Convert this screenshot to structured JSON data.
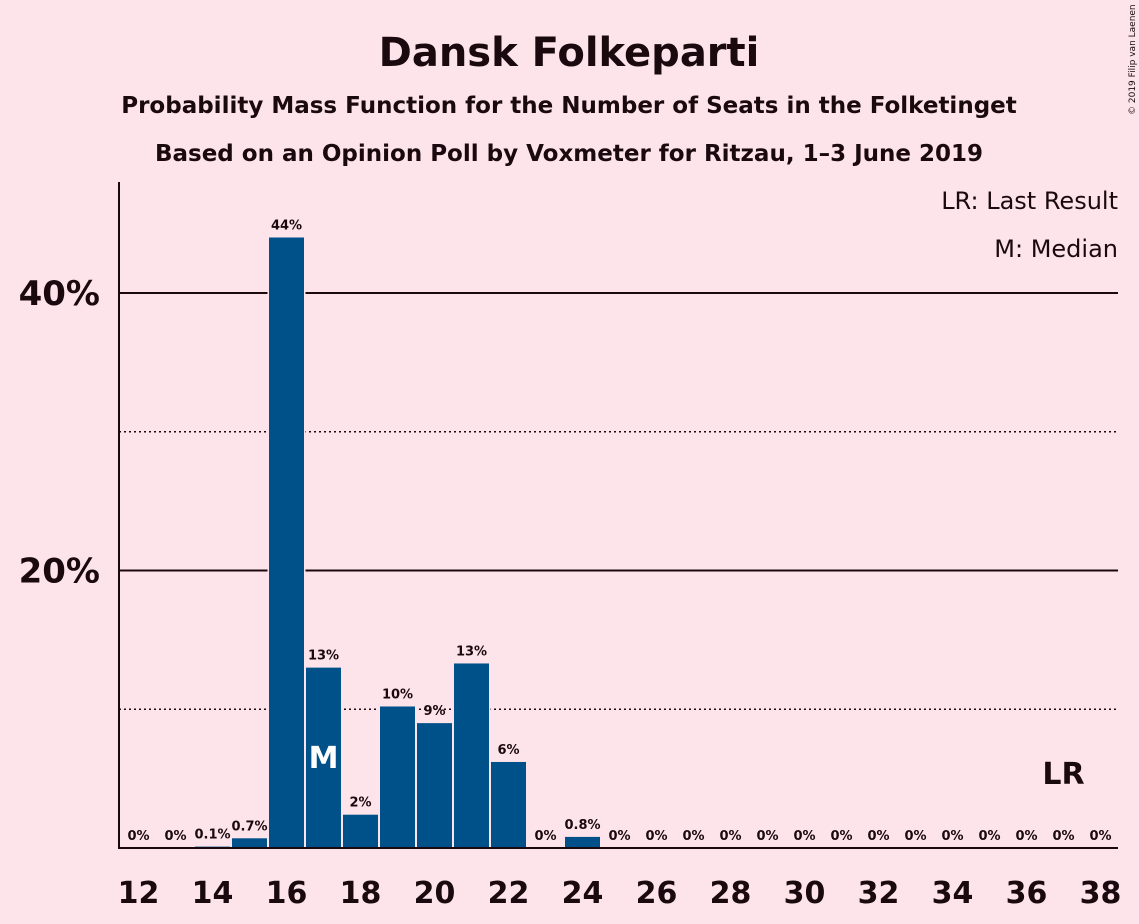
{
  "chart_data": {
    "type": "bar",
    "title": "Dansk Folkeparti",
    "subtitle": "Probability Mass Function for the Number of Seats in the Folketinget",
    "subtitle2": "Based on an Opinion Poll by Voxmeter for Ritzau, 1–3 June 2019",
    "legend": [
      "LR: Last Result",
      "M: Median"
    ],
    "legend_position": "top-right",
    "copyright": "© 2019 Filip van Laenen",
    "x": [
      12,
      13,
      14,
      15,
      16,
      17,
      18,
      19,
      20,
      21,
      22,
      23,
      24,
      25,
      26,
      27,
      28,
      29,
      30,
      31,
      32,
      33,
      34,
      35,
      36,
      37,
      38
    ],
    "values": [
      0,
      0,
      0.1,
      0.7,
      44,
      13,
      2.4,
      10.2,
      9,
      13.3,
      6.2,
      0,
      0.8,
      0,
      0,
      0,
      0,
      0,
      0,
      0,
      0,
      0,
      0,
      0,
      0,
      0,
      0
    ],
    "labels": [
      "0%",
      "0%",
      "0.1%",
      "0.7%",
      "44%",
      "13%",
      "2%",
      "10%",
      "9%",
      "13%",
      "6%",
      "0%",
      "0.8%",
      "0%",
      "0%",
      "0%",
      "0%",
      "0%",
      "0%",
      "0%",
      "0%",
      "0%",
      "0%",
      "0%",
      "0%",
      "0%",
      "0%"
    ],
    "xticks": [
      "12",
      "14",
      "16",
      "18",
      "20",
      "22",
      "24",
      "26",
      "28",
      "30",
      "32",
      "34",
      "36",
      "38"
    ],
    "yticks": [
      "20%",
      "40%"
    ],
    "ylim": [
      0,
      48
    ],
    "median_seat": 17,
    "median_label": "M",
    "last_result_seat": 37,
    "last_result_label": "LR",
    "grid": {
      "solid": [
        20,
        40
      ],
      "dotted": [
        10,
        30
      ]
    }
  }
}
